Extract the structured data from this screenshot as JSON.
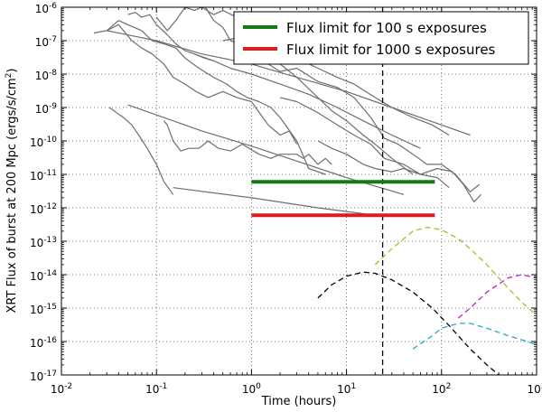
{
  "chart_data": {
    "type": "line",
    "title": "",
    "xlabel": "Time (hours)",
    "ylabel_main": "XRT Flux of burst at 200 Mpc (ergs/s/cm",
    "ylabel_sup": "2",
    "ylabel_end": ")",
    "x_scale": "log",
    "y_scale": "log",
    "xlim": [
      0.01,
      1000
    ],
    "ylim": [
      1e-17,
      1e-06
    ],
    "grid": true,
    "legend_position": "top-right",
    "x_ticks": [
      {
        "value": 0.01,
        "base": "10",
        "exp": "-2"
      },
      {
        "value": 0.1,
        "base": "10",
        "exp": "-1"
      },
      {
        "value": 1,
        "base": "10",
        "exp": "0"
      },
      {
        "value": 10,
        "base": "10",
        "exp": "1"
      },
      {
        "value": 100,
        "base": "10",
        "exp": "2"
      },
      {
        "value": 1000,
        "base": "10",
        "exp": "3"
      }
    ],
    "y_ticks": [
      {
        "value": 1e-06,
        "base": "10",
        "exp": "-6"
      },
      {
        "value": 1e-07,
        "base": "10",
        "exp": "-7"
      },
      {
        "value": 1e-08,
        "base": "10",
        "exp": "-8"
      },
      {
        "value": 1e-09,
        "base": "10",
        "exp": "-9"
      },
      {
        "value": 1e-10,
        "base": "10",
        "exp": "-10"
      },
      {
        "value": 1e-11,
        "base": "10",
        "exp": "-11"
      },
      {
        "value": 1e-12,
        "base": "10",
        "exp": "-12"
      },
      {
        "value": 1e-13,
        "base": "10",
        "exp": "-13"
      },
      {
        "value": 1e-14,
        "base": "10",
        "exp": "-14"
      },
      {
        "value": 1e-15,
        "base": "10",
        "exp": "-15"
      },
      {
        "value": 1e-16,
        "base": "10",
        "exp": "-16"
      },
      {
        "value": 1e-17,
        "base": "10",
        "exp": "-17"
      }
    ],
    "vertical_line": {
      "x": 24,
      "color": "#000000",
      "style": "dashed"
    },
    "limits": [
      {
        "name": "Flux limit for 100 s exposures",
        "color": "#157a15",
        "x": [
          1,
          85
        ],
        "y": 6e-12
      },
      {
        "name": "Flux limit for 1000 s exposures",
        "color": "#dd1c1c",
        "x": [
          1,
          85
        ],
        "y": 6e-13
      }
    ],
    "light_curves_color": "#6e6e6e",
    "light_curves": [
      {
        "x": [
          0.05,
          0.06,
          0.07,
          0.085,
          0.1,
          0.13,
          0.16,
          0.2,
          0.25,
          0.32,
          0.4
        ],
        "y": [
          6e-07,
          7e-07,
          5e-07,
          6e-07,
          3e-07,
          1.5e-07,
          8e-08,
          5e-08,
          4e-08,
          3e-08,
          2.5e-08
        ]
      },
      {
        "x": [
          0.022,
          0.03,
          0.04,
          0.055,
          0.07,
          0.09,
          0.12,
          0.15,
          0.2,
          0.26,
          0.35,
          0.5,
          0.7,
          1.0,
          1.5,
          2.0,
          2.5,
          3.0
        ],
        "y": [
          1.7e-07,
          2e-07,
          3e-07,
          1e-07,
          6e-08,
          4e-08,
          2e-08,
          8e-09,
          5e-09,
          3e-09,
          2e-09,
          3e-09,
          2e-09,
          1.5e-09,
          3e-10,
          1.5e-10,
          2e-10,
          8e-11
        ]
      },
      {
        "x": [
          0.03,
          0.04,
          0.05,
          0.07,
          0.09,
          0.12,
          0.16,
          0.2,
          0.28,
          0.4,
          0.55,
          0.7,
          0.9,
          1.2,
          1.6,
          2.0,
          3.0,
          4.0,
          6.0
        ],
        "y": [
          2e-07,
          4e-07,
          3e-07,
          2e-07,
          1e-07,
          8e-08,
          6e-08,
          3e-08,
          1.5e-08,
          8e-09,
          5e-09,
          3e-09,
          2e-09,
          1.5e-09,
          1e-09,
          5e-10,
          1e-10,
          1.5e-11,
          1e-11
        ]
      },
      {
        "x": [
          0.1,
          0.13,
          0.16,
          0.2,
          0.25,
          0.3,
          0.4,
          0.5,
          0.7,
          1.0,
          1.5,
          2.0,
          3.0,
          4.0,
          5.0,
          7.0
        ],
        "y": [
          5e-07,
          2e-07,
          4e-07,
          1e-06,
          8e-07,
          1e-06,
          6e-07,
          8e-07,
          5e-07,
          4e-07,
          2e-07,
          2.5e-07,
          1.5e-07,
          2e-07,
          1.5e-07,
          1.2e-07
        ]
      },
      {
        "x": [
          0.032,
          0.038,
          0.045,
          0.055,
          0.065,
          0.08,
          0.1,
          0.12,
          0.15
        ],
        "y": [
          1e-09,
          7e-10,
          5e-10,
          3e-10,
          1.5e-10,
          6e-11,
          2e-11,
          6e-12,
          2.5e-12
        ]
      },
      {
        "x": [
          0.2,
          0.3,
          0.4,
          0.5,
          0.6,
          0.75,
          1.0,
          1.5,
          2.0,
          3.0,
          5.0,
          8.0,
          12.0,
          18.0,
          25.0,
          35.0,
          50.0,
          70.0,
          100.0,
          140.0,
          200.0,
          250.0
        ],
        "y": [
          2e-06,
          1.5e-06,
          4e-07,
          2.5e-07,
          1e-07,
          8e-08,
          6e-08,
          2e-08,
          1.2e-08,
          1.5e-08,
          6e-09,
          4e-09,
          2e-09,
          5e-10,
          1.2e-10,
          8e-11,
          4e-11,
          2e-11,
          2e-11,
          1e-11,
          3e-12,
          5e-12
        ]
      },
      {
        "x": [
          0.5,
          0.7,
          1.0,
          1.5,
          2.0,
          3.0,
          5.0,
          8.0,
          12.0,
          20.0,
          30.0,
          50.0,
          80.0,
          120.0
        ],
        "y": [
          1e-07,
          1.2e-07,
          1e-07,
          8e-08,
          6e-08,
          3e-08,
          1.5e-08,
          8e-09,
          5e-09,
          2e-09,
          1e-09,
          5e-10,
          3e-10,
          1.5e-10
        ]
      },
      {
        "x": [
          1.0,
          1.5,
          2.0,
          3.0,
          5.0,
          7.0,
          10.0,
          15.0,
          20.0,
          30.0,
          50.0
        ],
        "y": [
          6e-08,
          3e-08,
          2e-08,
          8e-09,
          2e-09,
          8e-10,
          4e-10,
          1.5e-10,
          8e-11,
          3e-11,
          1e-11
        ]
      },
      {
        "x": [
          0.25,
          0.4,
          0.6,
          1.0,
          2.0,
          4.0,
          8.0,
          15.0,
          30.0,
          60.0
        ],
        "y": [
          4e-08,
          2.5e-08,
          1.5e-08,
          1e-08,
          5e-09,
          2.5e-09,
          1e-09,
          4e-10,
          1.5e-10,
          6e-11
        ]
      },
      {
        "x": [
          0.03,
          0.1,
          0.3,
          1.0,
          3.0,
          10.0,
          30.0,
          100.0,
          200.0
        ],
        "y": [
          2e-07,
          1e-07,
          4e-08,
          2e-08,
          8e-09,
          3e-09,
          1e-09,
          3e-10,
          1.5e-10
        ]
      },
      {
        "x": [
          0.05,
          0.1,
          0.3,
          1.0,
          3.0,
          10.0,
          40.0
        ],
        "y": [
          1.2e-09,
          6e-10,
          2e-10,
          7e-11,
          2.5e-11,
          8e-12,
          2.5e-12
        ]
      },
      {
        "x": [
          2.0,
          3.0,
          5.0,
          8.0,
          12.0,
          18.0,
          25.0,
          40.0,
          60.0,
          90.0,
          120.0
        ],
        "y": [
          2e-09,
          1.5e-09,
          7e-10,
          3e-10,
          1.5e-10,
          8e-11,
          3e-11,
          2e-11,
          1e-11,
          8e-12,
          4e-12
        ]
      },
      {
        "x": [
          5.0,
          7.0,
          10.0,
          15.0,
          20.0,
          30.0,
          40.0,
          60.0,
          90.0,
          130.0,
          170.0,
          220.0,
          260.0
        ],
        "y": [
          1e-10,
          6e-11,
          4e-11,
          2e-11,
          1.5e-11,
          1.2e-11,
          1.5e-11,
          1e-11,
          1.5e-11,
          1.2e-11,
          5e-12,
          1.5e-12,
          2.5e-12
        ]
      },
      {
        "x": [
          0.12,
          0.13,
          0.15,
          0.18,
          0.22,
          0.28,
          0.35,
          0.45,
          0.6,
          0.8,
          1.2,
          1.6,
          2.0,
          3.0,
          3.5,
          4.0,
          5.0,
          6.0,
          7.0
        ],
        "y": [
          4e-10,
          3e-10,
          1e-10,
          5e-11,
          6e-11,
          6e-11,
          1e-10,
          6e-11,
          5e-11,
          8e-11,
          4e-11,
          3e-11,
          4e-11,
          4e-11,
          3e-11,
          4e-11,
          2e-11,
          3e-11,
          2e-11
        ]
      },
      {
        "x": [
          0.15,
          1.0,
          5.0,
          20.0
        ],
        "y": [
          4e-12,
          2e-12,
          1e-12,
          6e-13
        ]
      }
    ],
    "model_curves": [
      {
        "color": "#b5b52c",
        "x": [
          20,
          30,
          50,
          70,
          100,
          150,
          200,
          300,
          500,
          700,
          1000
        ],
        "y": [
          2e-14,
          6e-14,
          2e-13,
          2.6e-13,
          2.2e-13,
          1.2e-13,
          6e-14,
          2e-14,
          4e-15,
          1.5e-15,
          6e-16
        ]
      },
      {
        "color": "#000000",
        "x": [
          5,
          7,
          10,
          15,
          20,
          30,
          50,
          80,
          120,
          200,
          300,
          500,
          700
        ],
        "y": [
          2e-15,
          5e-15,
          9e-15,
          1.2e-14,
          1.1e-14,
          7e-15,
          3e-15,
          1e-15,
          3e-16,
          6e-17,
          2e-17,
          6e-18,
          3e-18
        ]
      },
      {
        "color": "#bb22bb",
        "x": [
          150,
          200,
          300,
          500,
          700,
          1000
        ],
        "y": [
          5e-16,
          1e-15,
          3e-15,
          8e-15,
          1e-14,
          8e-15
        ]
      },
      {
        "color": "#22a8c8",
        "x": [
          50,
          80,
          100,
          150,
          200,
          300,
          500,
          800,
          1000
        ],
        "y": [
          6e-17,
          1.5e-16,
          2.5e-16,
          3.5e-16,
          3.5e-16,
          2.5e-16,
          1.5e-16,
          1e-16,
          8e-17
        ]
      }
    ]
  }
}
